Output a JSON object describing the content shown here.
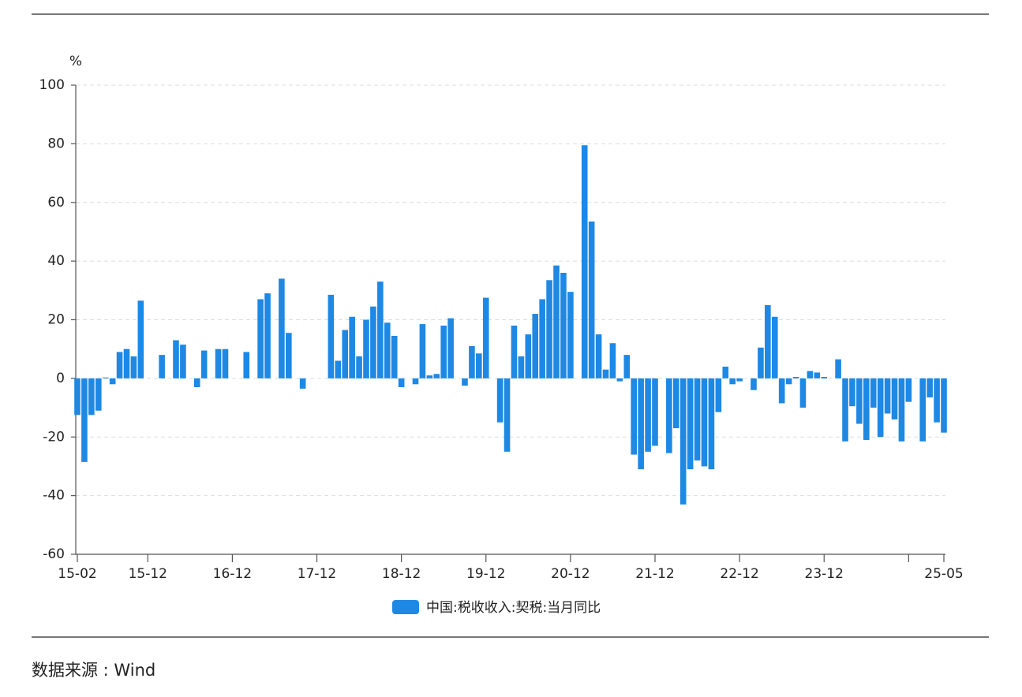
{
  "chart_data": {
    "type": "bar",
    "unit": "%",
    "categories": [
      "15-02",
      null,
      null,
      null,
      null,
      null,
      null,
      null,
      null,
      null,
      "15-12",
      null,
      null,
      null,
      null,
      null,
      null,
      null,
      null,
      null,
      null,
      null,
      "16-12",
      null,
      null,
      null,
      null,
      null,
      null,
      null,
      null,
      null,
      null,
      null,
      "17-12",
      null,
      null,
      null,
      null,
      null,
      null,
      null,
      null,
      null,
      null,
      null,
      "18-12",
      null,
      null,
      null,
      null,
      null,
      null,
      null,
      null,
      null,
      null,
      null,
      "19-12",
      null,
      null,
      null,
      null,
      null,
      null,
      null,
      null,
      null,
      null,
      null,
      "20-12",
      null,
      null,
      null,
      null,
      null,
      null,
      null,
      null,
      null,
      null,
      null,
      "21-12",
      null,
      null,
      null,
      null,
      null,
      null,
      null,
      null,
      null,
      null,
      null,
      "22-12",
      null,
      null,
      null,
      null,
      null,
      null,
      null,
      null,
      null,
      null,
      null,
      "23-12",
      null,
      null,
      null,
      null,
      null,
      null,
      null,
      null,
      null,
      null,
      null,
      null,
      null,
      null,
      null,
      null,
      "25-05"
    ],
    "xticks": [
      0,
      10,
      22,
      34,
      46,
      58,
      70,
      82,
      94,
      106,
      118,
      123
    ],
    "series": [
      {
        "name": "中国:税收收入:契税:当月同比",
        "color": "#1e88e5",
        "values": [
          -12.5,
          -28.5,
          -12.5,
          -11,
          0.3,
          -2,
          9,
          10,
          7.5,
          26.5,
          null,
          null,
          8,
          null,
          13,
          11.5,
          null,
          -3,
          9.5,
          null,
          10,
          10,
          null,
          null,
          9,
          null,
          27,
          29,
          null,
          34,
          15.5,
          null,
          -3.5,
          null,
          null,
          null,
          28.5,
          6,
          16.5,
          21,
          7.5,
          20,
          24.5,
          33,
          19,
          14.5,
          -3,
          null,
          -2,
          18.5,
          1,
          1.5,
          18,
          20.5,
          null,
          -2.5,
          11,
          8.5,
          27.5,
          null,
          -15,
          -25,
          18,
          7.5,
          15,
          22,
          27,
          33.5,
          38.5,
          36,
          29.5,
          null,
          79.5,
          53.5,
          15,
          3,
          12,
          -1,
          8,
          -26,
          -31,
          -25,
          -23,
          null,
          -25.5,
          -17,
          -43,
          -31,
          -28,
          -30,
          -31,
          -11.5,
          4,
          -2,
          -1,
          null,
          -4,
          10.5,
          25,
          21,
          -8.5,
          -2,
          0.5,
          -10,
          2.5,
          2,
          0.5,
          null,
          6.5,
          -21.5,
          -9.5,
          -15.5,
          -21,
          -10,
          -20,
          -12,
          -14,
          -21.5,
          -8,
          null,
          -21.5,
          -6.5,
          -15,
          -18.5
        ]
      }
    ],
    "ylim": [
      -60,
      100
    ],
    "yticks": [
      -60,
      -40,
      -20,
      0,
      20,
      40,
      60,
      80,
      100
    ],
    "grid": true,
    "legend": "bottom",
    "source": "数据来源 : Wind"
  }
}
